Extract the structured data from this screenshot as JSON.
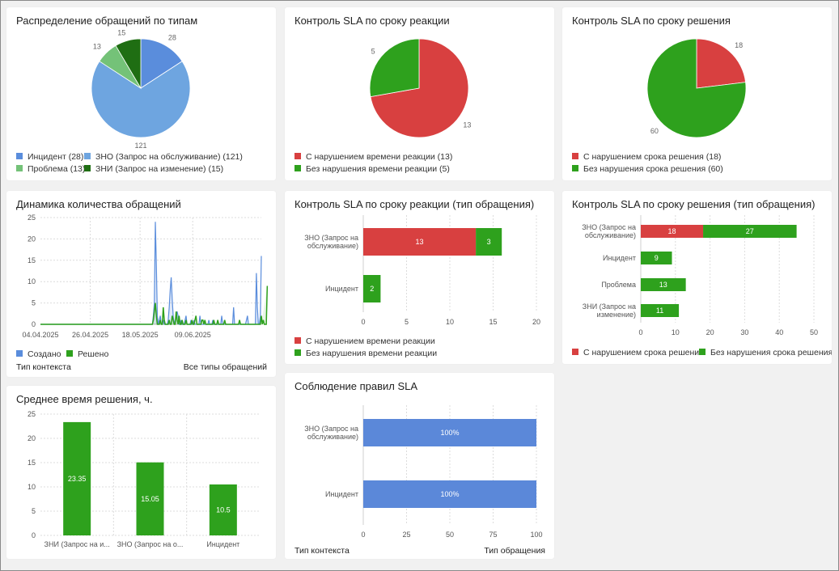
{
  "colors": {
    "red": "#d84040",
    "green": "#2ea11d",
    "blue": "#5a8ddc",
    "blue_light": "#6ea5e0",
    "green_light": "#74c278",
    "green_dark": "#1f6e13",
    "bar_blue": "#5b88d9"
  },
  "cards": {
    "dist": {
      "title": "Распределение обращений по типам"
    },
    "sla_react": {
      "title": "Контроль SLA по сроку реакции"
    },
    "sla_solve": {
      "title": "Контроль SLA по сроку решения"
    },
    "dyn": {
      "title": "Динамика количества обращений",
      "footer_left": "Тип контекста",
      "footer_right": "Все типы обращений"
    },
    "sla_react_type": {
      "title": "Контроль SLA по сроку реакции (тип обращения)"
    },
    "sla_solve_type": {
      "title": "Контроль SLA по сроку решения (тип обращения)"
    },
    "avg": {
      "title": "Среднее время решения, ч."
    },
    "compliance": {
      "title": "Соблюдение правил SLA",
      "footer_left": "Тип контекста",
      "footer_right": "Тип обращения"
    }
  },
  "chart_data": [
    {
      "id": "dist",
      "type": "pie",
      "slices": [
        {
          "label": "Инцидент (28)",
          "value": 28,
          "color_key": "blue"
        },
        {
          "label": "ЗНО (Запрос на обслуживание) (121)",
          "value": 121,
          "color_key": "blue_light"
        },
        {
          "label": "Проблема (13)",
          "value": 13,
          "color_key": "green_light"
        },
        {
          "label": "ЗНИ (Запрос на изменение) (15)",
          "value": 15,
          "color_key": "green_dark"
        }
      ],
      "legend": "bottom"
    },
    {
      "id": "sla_react",
      "type": "pie",
      "slices": [
        {
          "label": "С нарушением времени реакции (13)",
          "value": 13,
          "color_key": "red"
        },
        {
          "label": "Без нарушения времени реакции (5)",
          "value": 5,
          "color_key": "green"
        }
      ],
      "legend": "bottom"
    },
    {
      "id": "sla_solve",
      "type": "pie",
      "slices": [
        {
          "label": "С нарушением срока решения (18)",
          "value": 18,
          "color_key": "red"
        },
        {
          "label": "Без нарушения срока решения (60)",
          "value": 60,
          "color_key": "green"
        }
      ],
      "legend": "bottom"
    },
    {
      "id": "dyn",
      "type": "area",
      "x_tick_labels": [
        "04.04.2025",
        "26.04.2025",
        "18.05.2025",
        "09.06.2025"
      ],
      "ylim": [
        0,
        25
      ],
      "y_ticks": [
        0,
        5,
        10,
        15,
        20,
        25
      ],
      "series": [
        {
          "name": "Создано",
          "color_key": "blue",
          "values": [
            0,
            0,
            0,
            0,
            0,
            0,
            0,
            0,
            0,
            0,
            0,
            0,
            0,
            0,
            0,
            0,
            0,
            0,
            0,
            0,
            0,
            0,
            0,
            0,
            0,
            0,
            0,
            0,
            0,
            0,
            0,
            0,
            0,
            0,
            0,
            0,
            0,
            0,
            0,
            0,
            0,
            0,
            0,
            0,
            0,
            0,
            0,
            0,
            0,
            0,
            0,
            0,
            0,
            0,
            0,
            0,
            0,
            0,
            0,
            0,
            0,
            0,
            0,
            0,
            0,
            0,
            0,
            0,
            0,
            0,
            0,
            0,
            0,
            0,
            0,
            0,
            0,
            0,
            0,
            0,
            0,
            0,
            0,
            0,
            0,
            0,
            0,
            0,
            0,
            0,
            0,
            0,
            0,
            0,
            0,
            0,
            0,
            0,
            0,
            0,
            0,
            0,
            0,
            0,
            0,
            0,
            0,
            0,
            0,
            0,
            0,
            0,
            0,
            0,
            2,
            5,
            24,
            14,
            2,
            0,
            1,
            2,
            0,
            0,
            1,
            0,
            0,
            0,
            0,
            1,
            4,
            8,
            11,
            6,
            2,
            0,
            1,
            2,
            3,
            2,
            0,
            0,
            1,
            0,
            0,
            0,
            1,
            2,
            0,
            0,
            0,
            0,
            1,
            0,
            0,
            1,
            0,
            0,
            0,
            0,
            0,
            2,
            0,
            0,
            0,
            0,
            0,
            0,
            0,
            0,
            1,
            0,
            0,
            0,
            1,
            0,
            0,
            0,
            0,
            0,
            0,
            0,
            0,
            2,
            0,
            0,
            0,
            0,
            0,
            0,
            0,
            0,
            0,
            0,
            0,
            4,
            0,
            0,
            0,
            0,
            0,
            0,
            0,
            0,
            0,
            0,
            0,
            0,
            1,
            2,
            0,
            0,
            0,
            0,
            0,
            0,
            0,
            0,
            12,
            4,
            0,
            0,
            2,
            16
          ]
        },
        {
          "name": "Решено",
          "color_key": "green",
          "values": [
            0,
            0,
            0,
            0,
            0,
            0,
            0,
            0,
            0,
            0,
            0,
            0,
            0,
            0,
            0,
            0,
            0,
            0,
            0,
            0,
            0,
            0,
            0,
            0,
            0,
            0,
            0,
            0,
            0,
            0,
            0,
            0,
            0,
            0,
            0,
            0,
            0,
            0,
            0,
            0,
            0,
            0,
            0,
            0,
            0,
            0,
            0,
            0,
            0,
            0,
            0,
            0,
            0,
            0,
            0,
            0,
            0,
            0,
            0,
            0,
            0,
            0,
            0,
            0,
            0,
            0,
            0,
            0,
            0,
            0,
            0,
            0,
            0,
            0,
            0,
            0,
            0,
            0,
            0,
            0,
            0,
            0,
            0,
            0,
            0,
            0,
            0,
            0,
            0,
            0,
            0,
            0,
            0,
            0,
            0,
            0,
            0,
            0,
            0,
            0,
            0,
            0,
            0,
            0,
            0,
            0,
            0,
            0,
            0,
            0,
            0,
            0,
            0,
            0,
            1,
            3,
            5,
            2,
            0,
            0,
            0,
            1,
            0,
            0,
            4,
            1,
            0,
            0,
            0,
            0,
            1,
            0,
            0,
            2,
            1,
            0,
            0,
            3,
            1,
            0,
            2,
            0,
            0,
            1,
            0,
            0,
            0,
            1,
            0,
            0,
            0,
            0,
            0,
            1,
            0,
            0,
            1,
            2,
            0,
            0,
            0,
            0,
            0,
            1,
            1,
            0,
            1,
            0,
            0,
            0,
            0,
            0,
            0,
            0,
            0,
            1,
            0,
            0,
            0,
            1,
            0,
            0,
            0,
            0,
            0,
            0,
            1,
            0,
            0,
            0,
            0,
            0,
            0,
            0,
            0,
            0,
            0,
            0,
            0,
            0,
            0,
            1,
            0,
            0,
            0,
            0,
            0,
            0,
            0,
            0,
            0,
            0,
            0,
            0,
            0,
            0,
            0,
            0,
            0,
            0,
            0,
            0,
            0,
            2,
            0,
            1,
            0,
            0,
            0,
            9
          ]
        }
      ],
      "legend": "bottom-left"
    },
    {
      "id": "sla_react_type",
      "type": "bar",
      "orientation": "horizontal",
      "stacked": true,
      "categories": [
        "ЗНО (Запрос на обслуживание)",
        "Инцидент"
      ],
      "series": [
        {
          "name": "С нарушением времени реакции",
          "color_key": "red",
          "values": [
            13,
            0
          ]
        },
        {
          "name": "Без нарушения времени реакции",
          "color_key": "green",
          "values": [
            3,
            2
          ]
        }
      ],
      "xlim": [
        0,
        20
      ],
      "x_ticks": [
        0,
        5,
        10,
        15,
        20
      ],
      "legend": "bottom"
    },
    {
      "id": "sla_solve_type",
      "type": "bar",
      "orientation": "horizontal",
      "stacked": true,
      "categories": [
        "ЗНО (Запрос на обслуживание)",
        "Инцидент",
        "Проблема",
        "ЗНИ (Запрос на изменение)"
      ],
      "series": [
        {
          "name": "С нарушением срока решения",
          "color_key": "red",
          "values": [
            18,
            0,
            0,
            0
          ]
        },
        {
          "name": "Без нарушения срока решения",
          "color_key": "green",
          "values": [
            27,
            9,
            13,
            11
          ]
        }
      ],
      "xlim": [
        0,
        50
      ],
      "x_ticks": [
        0,
        10,
        20,
        30,
        40,
        50
      ],
      "legend": "bottom"
    },
    {
      "id": "avg",
      "type": "bar",
      "orientation": "vertical",
      "categories": [
        "ЗНИ (Запрос на и...",
        "ЗНО (Запрос на о...",
        "Инцидент"
      ],
      "values": [
        23.35,
        15.05,
        10.5
      ],
      "value_labels": [
        "23.35",
        "15.05",
        "10.5"
      ],
      "ylim": [
        0,
        25
      ],
      "y_ticks": [
        0,
        5,
        10,
        15,
        20,
        25
      ],
      "color_key": "green"
    },
    {
      "id": "compliance",
      "type": "bar",
      "orientation": "horizontal",
      "categories": [
        "ЗНО (Запрос на обслуживание)",
        "Инцидент"
      ],
      "values": [
        100,
        100
      ],
      "value_labels": [
        "100%",
        "100%"
      ],
      "xlim": [
        0,
        100
      ],
      "x_ticks": [
        0,
        25,
        50,
        75,
        100
      ],
      "color_key": "bar_blue"
    }
  ]
}
